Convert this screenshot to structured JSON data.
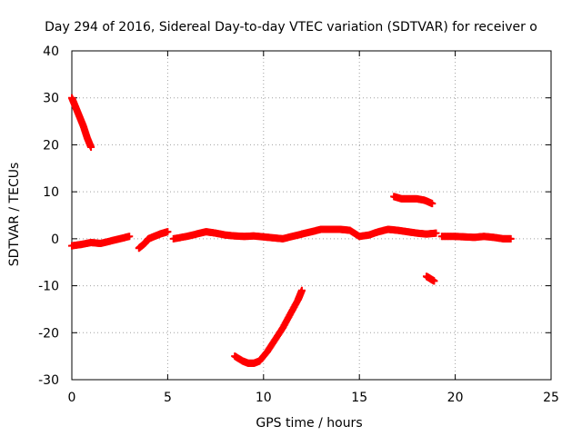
{
  "chart_data": {
    "type": "scatter",
    "title": "Day 294 of 2016, Sidereal Day-to-day VTEC variation (SDTVAR) for receiver o",
    "xlabel": "GPS time / hours",
    "ylabel": "SDTVAR / TECUs",
    "xlim": [
      0,
      25
    ],
    "ylim": [
      -30,
      40
    ],
    "xticks": [
      "0",
      "5",
      "10",
      "15",
      "20",
      "25"
    ],
    "yticks": [
      "-30",
      "-20",
      "-10",
      "0",
      "10",
      "20",
      "30",
      "40"
    ],
    "grid": true,
    "marker": "plus",
    "color": "#ff0000",
    "segments": [
      {
        "x": [
          0.0,
          0.2,
          0.4,
          0.6,
          0.8,
          1.0
        ],
        "y": [
          30.0,
          28.0,
          26.0,
          24.0,
          21.5,
          19.5
        ]
      },
      {
        "x": [
          0.0,
          0.5,
          1.0,
          1.5,
          2.0,
          2.5,
          3.0
        ],
        "y": [
          -1.5,
          -1.2,
          -0.8,
          -1.0,
          -0.5,
          0.0,
          0.5
        ]
      },
      {
        "x": [
          3.5,
          3.8,
          4.0,
          4.3,
          4.6,
          5.0
        ],
        "y": [
          -2.0,
          -1.0,
          0.0,
          0.5,
          1.0,
          1.5
        ]
      },
      {
        "x": [
          5.3,
          6.0,
          6.5,
          7.0,
          7.5,
          8.0,
          8.5,
          9.0,
          9.5,
          10.0,
          10.5,
          11.0,
          11.5,
          12.0
        ],
        "y": [
          0.0,
          0.5,
          1.0,
          1.5,
          1.2,
          0.8,
          0.6,
          0.5,
          0.6,
          0.4,
          0.2,
          0.0,
          0.5,
          1.0
        ]
      },
      {
        "x": [
          12.0,
          12.5,
          13.0,
          13.5,
          14.0,
          14.5,
          15.0,
          15.5,
          16.0,
          16.5,
          17.0,
          17.5,
          18.0,
          18.5,
          19.0
        ],
        "y": [
          1.0,
          1.5,
          2.0,
          2.0,
          2.0,
          1.8,
          0.5,
          0.8,
          1.5,
          2.0,
          1.8,
          1.5,
          1.2,
          1.0,
          1.2
        ]
      },
      {
        "x": [
          8.5,
          8.9,
          9.2,
          9.5,
          9.8,
          10.2,
          10.6,
          11.0,
          11.4,
          11.8,
          12.0
        ],
        "y": [
          -25.0,
          -26.0,
          -26.5,
          -26.5,
          -26.0,
          -24.0,
          -21.5,
          -19.0,
          -16.0,
          -13.0,
          -11.0
        ]
      },
      {
        "x": [
          16.8,
          17.2,
          17.6,
          18.0,
          18.4,
          18.8
        ],
        "y": [
          9.0,
          8.5,
          8.5,
          8.5,
          8.2,
          7.5
        ]
      },
      {
        "x": [
          18.5,
          18.7,
          18.9
        ],
        "y": [
          -8.0,
          -8.5,
          -9.0
        ]
      },
      {
        "x": [
          19.3,
          20.0,
          20.5,
          21.0,
          21.5,
          22.0,
          22.5,
          22.9
        ],
        "y": [
          0.5,
          0.5,
          0.4,
          0.3,
          0.5,
          0.3,
          0.0,
          0.0
        ]
      }
    ]
  }
}
